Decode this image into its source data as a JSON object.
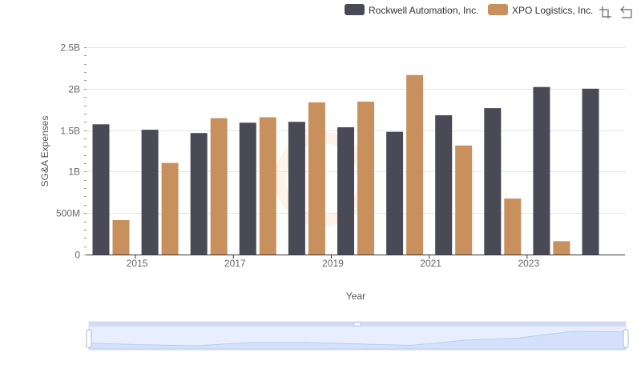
{
  "chart_data": {
    "type": "bar",
    "title": "",
    "xlabel": "Year",
    "ylabel": "SG&A Expenses",
    "categories": [
      "2014",
      "2015",
      "2016",
      "2017",
      "2018",
      "2019",
      "2020",
      "2021",
      "2022",
      "2023",
      "2024"
    ],
    "x_tick_labels": [
      "2015",
      "2017",
      "2019",
      "2021",
      "2023"
    ],
    "y_ticks": [
      0,
      500000000,
      1000000000,
      1500000000,
      2000000000,
      2500000000
    ],
    "y_tick_labels": [
      "0",
      "500M",
      "1B",
      "1.5B",
      "2B",
      "2.5B"
    ],
    "ylim": [
      0,
      2500000000
    ],
    "grid": true,
    "legend_position": "top-right",
    "series": [
      {
        "name": "Rockwell Automation, Inc.",
        "color": "#4a4a57",
        "values": [
          1570000000,
          1505000000,
          1465000000,
          1590000000,
          1600000000,
          1535000000,
          1480000000,
          1680000000,
          1765000000,
          2020000000,
          2000000000
        ]
      },
      {
        "name": "XPO Logistics, Inc.",
        "color": "#c8905c",
        "values": [
          415000000,
          1105000000,
          1645000000,
          1655000000,
          1835000000,
          1845000000,
          2165000000,
          1315000000,
          675000000,
          160000000,
          null
        ]
      }
    ]
  },
  "legend": {
    "items": [
      {
        "label": "Rockwell Automation, Inc.",
        "color": "#4a4a57"
      },
      {
        "label": "XPO Logistics, Inc.",
        "color": "#c8905c"
      }
    ]
  },
  "toolbox": {
    "zoom_icon": "zoom-icon",
    "restore_icon": "restore-icon"
  },
  "datazoom": {
    "start_percent": 0,
    "end_percent": 100,
    "fill_color": "#d5e1fb"
  }
}
